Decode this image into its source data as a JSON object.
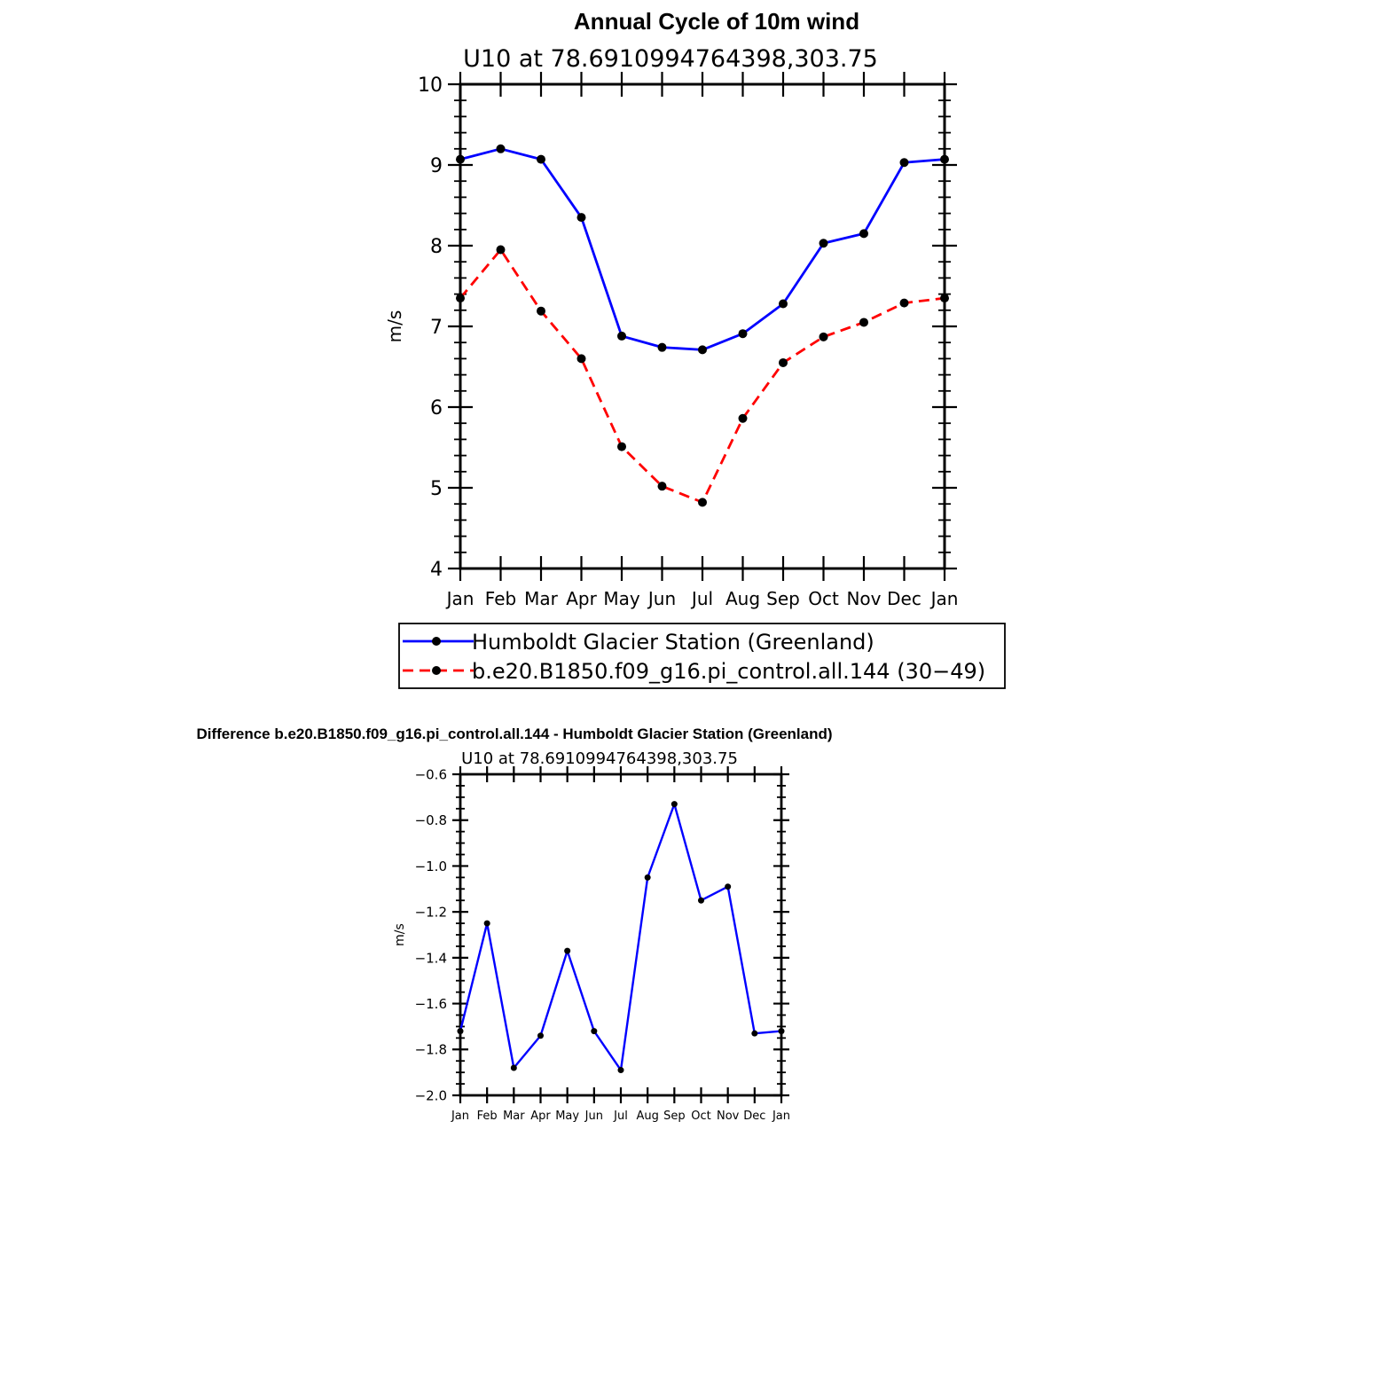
{
  "chart_data": [
    {
      "type": "line",
      "title": "Annual Cycle of 10m wind",
      "subtitle": "U10  at  78.6910994764398,303.75",
      "xlabel": "",
      "ylabel": "m/s",
      "categories": [
        "Jan",
        "Feb",
        "Mar",
        "Apr",
        "May",
        "Jun",
        "Jul",
        "Aug",
        "Sep",
        "Oct",
        "Nov",
        "Dec",
        "Jan"
      ],
      "ylim": [
        4,
        10
      ],
      "yticks": [
        "4",
        "5",
        "6",
        "7",
        "8",
        "9",
        "10"
      ],
      "grid": false,
      "legend": "bottom",
      "series": [
        {
          "name": "Humboldt Glacier Station (Greenland)",
          "color": "#0000ff",
          "dash": "solid",
          "marker": "filled-circle",
          "values": [
            9.07,
            9.2,
            9.07,
            8.35,
            6.88,
            6.74,
            6.71,
            6.91,
            7.28,
            8.03,
            8.15,
            9.03,
            9.07
          ]
        },
        {
          "name": "b.e20.B1850.f09_g16.pi_control.all.144 (30−49)",
          "color": "#ff0000",
          "dash": "dashed",
          "marker": "filled-circle",
          "values": [
            7.35,
            7.95,
            7.19,
            6.6,
            5.51,
            5.02,
            4.82,
            5.86,
            6.55,
            6.87,
            7.05,
            7.29,
            7.35
          ]
        }
      ]
    },
    {
      "type": "line",
      "title": "Difference b.e20.B1850.f09_g16.pi_control.all.144 - Humboldt Glacier Station (Greenland)",
      "subtitle": "U10  at  78.6910994764398,303.75",
      "xlabel": "",
      "ylabel": "m/s",
      "categories": [
        "Jan",
        "Feb",
        "Mar",
        "Apr",
        "May",
        "Jun",
        "Jul",
        "Aug",
        "Sep",
        "Oct",
        "Nov",
        "Dec",
        "Jan"
      ],
      "ylim": [
        -2.0,
        -0.6
      ],
      "yticks": [
        "−2.0",
        "−1.8",
        "−1.6",
        "−1.4",
        "−1.2",
        "−1.0",
        "−0.8",
        "−0.6"
      ],
      "grid": false,
      "legend": "none",
      "series": [
        {
          "color": "#0000ff",
          "dash": "solid",
          "marker": "filled-circle",
          "values": [
            -1.72,
            -1.25,
            -1.88,
            -1.74,
            -1.37,
            -1.72,
            -1.89,
            -1.05,
            -0.73,
            -1.15,
            -1.09,
            -1.73,
            -1.72
          ]
        }
      ]
    }
  ]
}
